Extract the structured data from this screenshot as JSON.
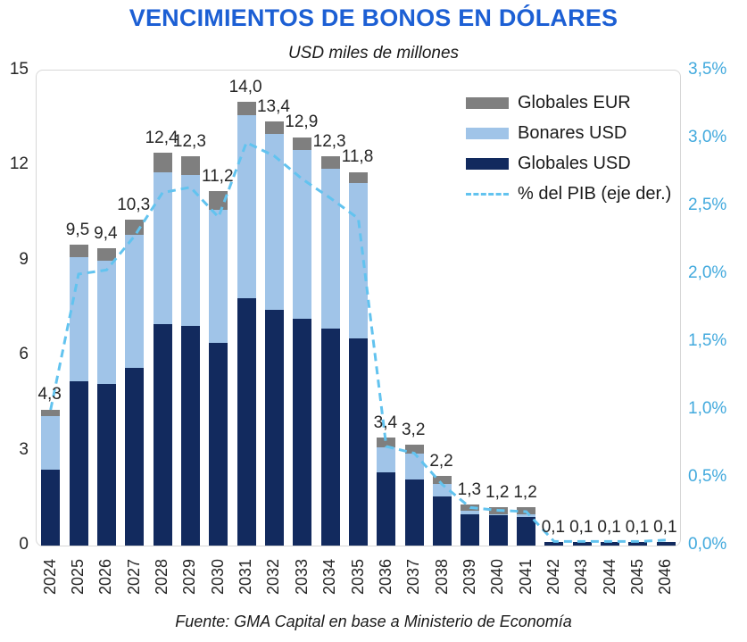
{
  "chart_data": {
    "type": "bar",
    "subtype": "stacked-bars-with-line-overlay",
    "title": "VENCIMIENTOS DE BONOS EN DÓLARES",
    "subtitle": "USD miles de millones",
    "source": "Fuente: GMA Capital en base a Ministerio de Economía",
    "categories": [
      "2024",
      "2025",
      "2026",
      "2027",
      "2028",
      "2029",
      "2030",
      "2031",
      "2032",
      "2033",
      "2034",
      "2035",
      "2036",
      "2037",
      "2038",
      "2039",
      "2040",
      "2041",
      "2042",
      "2043",
      "2044",
      "2045",
      "2046"
    ],
    "series": [
      {
        "name": "Globales USD",
        "color": "#122A5E",
        "values": [
          2.4,
          5.2,
          5.1,
          5.6,
          7.0,
          6.95,
          6.4,
          7.8,
          7.45,
          7.15,
          6.85,
          6.55,
          2.3,
          2.1,
          1.55,
          1.0,
          0.95,
          0.9,
          0.1,
          0.1,
          0.1,
          0.1,
          0.1
        ]
      },
      {
        "name": "Bonares USD",
        "color": "#A0C4E8",
        "values": [
          1.7,
          3.9,
          3.9,
          4.2,
          4.8,
          4.75,
          4.2,
          5.8,
          5.55,
          5.35,
          5.05,
          4.9,
          0.8,
          0.8,
          0.4,
          0.1,
          0.05,
          0.1,
          0,
          0,
          0,
          0,
          0
        ]
      },
      {
        "name": "Globales EUR",
        "color": "#7F7F7F",
        "values": [
          0.2,
          0.4,
          0.4,
          0.5,
          0.6,
          0.6,
          0.6,
          0.4,
          0.4,
          0.4,
          0.4,
          0.35,
          0.3,
          0.3,
          0.25,
          0.2,
          0.2,
          0.2,
          0,
          0,
          0,
          0,
          0
        ]
      }
    ],
    "totals": [
      4.3,
      9.5,
      9.4,
      10.3,
      12.4,
      12.3,
      11.2,
      14.0,
      13.4,
      12.9,
      12.3,
      11.8,
      3.4,
      3.2,
      2.2,
      1.3,
      1.2,
      1.2,
      0.1,
      0.1,
      0.1,
      0.1,
      0.1
    ],
    "total_labels": [
      "4,3",
      "9,5",
      "9,4",
      "10,3",
      "12,4",
      "12,3",
      "11,2",
      "14,0",
      "13,4",
      "12,9",
      "12,3",
      "11,8",
      "3,4",
      "3,2",
      "2,2",
      "1,3",
      "1,2",
      "1,2",
      "0,1",
      "0,1",
      "0,1",
      "0,1",
      "0,1"
    ],
    "line_series": {
      "name": "% del PIB (eje der.)",
      "color": "#62C3EF",
      "axis": "right",
      "values": [
        1.0,
        2.0,
        2.03,
        2.28,
        2.6,
        2.64,
        2.42,
        2.97,
        2.87,
        2.7,
        2.56,
        2.41,
        0.73,
        0.68,
        0.45,
        0.28,
        0.26,
        0.25,
        0.03,
        0.03,
        0.03,
        0.03,
        0.04
      ]
    },
    "left_axis": {
      "min": 0,
      "max": 15,
      "tick_labels": [
        "15",
        "12",
        "9",
        "6",
        "3",
        "0"
      ],
      "tick_values": [
        15,
        12,
        9,
        6,
        3,
        0
      ],
      "color": "#262626"
    },
    "right_axis": {
      "min": 0,
      "max": 3.5,
      "tick_labels": [
        "3,5%",
        "3,0%",
        "2,5%",
        "2,0%",
        "1,5%",
        "1,0%",
        "0,5%",
        "0,0%"
      ],
      "tick_values": [
        3.5,
        3.0,
        2.5,
        2.0,
        1.5,
        1.0,
        0.5,
        0.0
      ],
      "color": "#41A9DD"
    },
    "legend": {
      "position": "top-right-inside",
      "items": [
        {
          "label": "Globales EUR",
          "swatch": "rect",
          "color": "#7F7F7F"
        },
        {
          "label": "Bonares USD",
          "swatch": "rect",
          "color": "#A0C4E8"
        },
        {
          "label": "Globales USD",
          "swatch": "rect",
          "color": "#122A5E"
        },
        {
          "label": "% del PIB (eje der.)",
          "swatch": "dashed-line",
          "color": "#62C3EF"
        }
      ]
    },
    "grid": false,
    "title_color": "#1C5FD4"
  }
}
